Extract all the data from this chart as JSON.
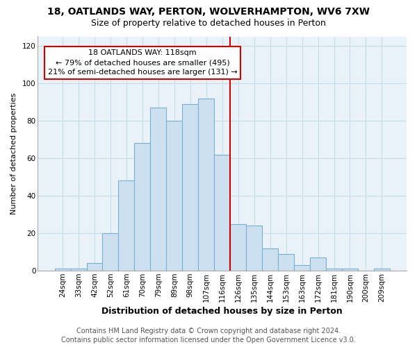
{
  "title": "18, OATLANDS WAY, PERTON, WOLVERHAMPTON, WV6 7XW",
  "subtitle": "Size of property relative to detached houses in Perton",
  "xlabel": "Distribution of detached houses by size in Perton",
  "ylabel": "Number of detached properties",
  "footer": "Contains HM Land Registry data © Crown copyright and database right 2024.\nContains public sector information licensed under the Open Government Licence v3.0.",
  "categories": [
    "24sqm",
    "33sqm",
    "42sqm",
    "52sqm",
    "61sqm",
    "70sqm",
    "79sqm",
    "89sqm",
    "98sqm",
    "107sqm",
    "116sqm",
    "126sqm",
    "135sqm",
    "144sqm",
    "153sqm",
    "163sqm",
    "172sqm",
    "181sqm",
    "190sqm",
    "200sqm",
    "209sqm"
  ],
  "values": [
    1,
    1,
    4,
    20,
    48,
    68,
    87,
    80,
    89,
    92,
    62,
    25,
    24,
    12,
    9,
    3,
    7,
    1,
    1,
    0,
    1
  ],
  "bar_color": "#cce0f0",
  "bar_edge_color": "#7ab0d0",
  "highlight_line_index": 10,
  "annotation_text": "18 OATLANDS WAY: 118sqm\n← 79% of detached houses are smaller (495)\n21% of semi-detached houses are larger (131) →",
  "annotation_box_color": "#ffffff",
  "annotation_box_edge_color": "#cc0000",
  "ylim": [
    0,
    125
  ],
  "yticks": [
    0,
    20,
    40,
    60,
    80,
    100,
    120
  ],
  "title_fontsize": 10,
  "subtitle_fontsize": 9,
  "xlabel_fontsize": 9,
  "ylabel_fontsize": 8,
  "tick_fontsize": 7.5,
  "annotation_fontsize": 8,
  "footer_fontsize": 7,
  "background_color": "#ffffff",
  "grid_color": "#c8dce8"
}
